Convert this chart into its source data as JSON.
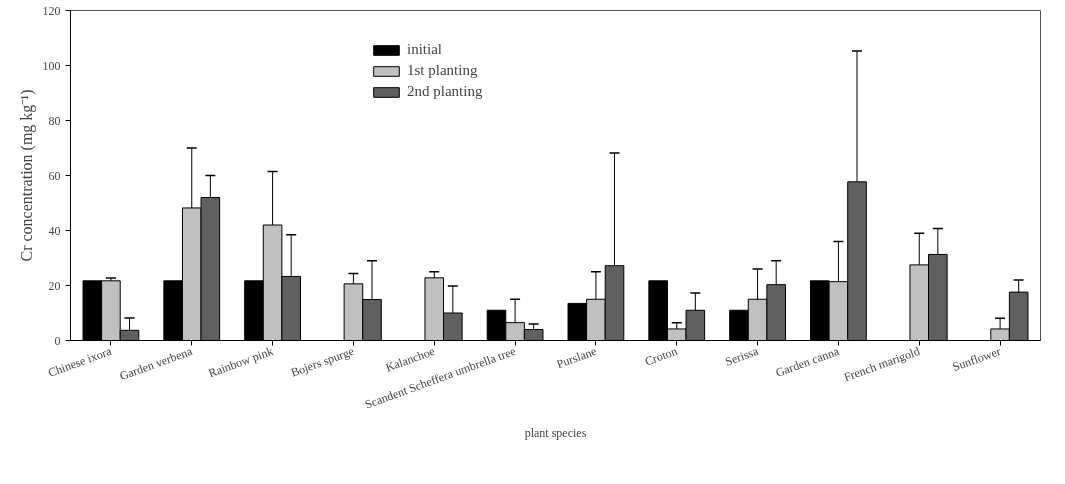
{
  "chart_data": {
    "type": "bar",
    "xlabel": "plant species",
    "ylabel": "Cr concentration (mg kg⁻¹)",
    "categories": [
      "Chinese ixora",
      "Garden verbena",
      "Rainbow pink",
      "Bojers spurge",
      "Kalanchoe",
      "Scandent Scheffera umbrella tree",
      "Purslane",
      "Croton",
      "Serissa",
      "Garden canna",
      "French marigold",
      "Sunflower"
    ],
    "series": [
      {
        "name": "initial",
        "color": "#000000",
        "values": [
          21.7,
          21.7,
          21.7,
          null,
          null,
          11,
          13.5,
          21.7,
          11,
          21.7,
          null,
          null
        ]
      },
      {
        "name": "1st planting",
        "color": "#c0c0c0",
        "values": [
          21.7,
          48.2,
          42,
          20.6,
          22.8,
          6.5,
          15,
          4.2,
          15,
          21.4,
          27.5,
          4.2
        ],
        "errors": [
          [
            21.7,
            22.7
          ],
          [
            48.2,
            70
          ],
          [
            42,
            61.5
          ],
          [
            20.6,
            24.4
          ],
          [
            22.8,
            25
          ],
          [
            6.5,
            15
          ],
          [
            15,
            25
          ],
          [
            4.2,
            6.5
          ],
          [
            15,
            26
          ],
          [
            21.4,
            36
          ],
          [
            27.5,
            39
          ],
          [
            4.2,
            8.1
          ]
        ]
      },
      {
        "name": "2nd planting",
        "color": "#606060",
        "values": [
          3.7,
          52,
          23.3,
          14.9,
          10,
          4,
          27.2,
          11,
          20.3,
          57.7,
          31.3,
          17.6
        ],
        "errors": [
          [
            3.7,
            8.2
          ],
          [
            52,
            60
          ],
          [
            23.3,
            38.5
          ],
          [
            14.9,
            29
          ],
          [
            10,
            19.8
          ],
          [
            4,
            6
          ],
          [
            27.2,
            68.2
          ],
          [
            11,
            17.3
          ],
          [
            20.3,
            29
          ],
          [
            57.7,
            105.3
          ],
          [
            31.3,
            40.7
          ],
          [
            17.6,
            22
          ]
        ]
      }
    ],
    "ylim": [
      0,
      120
    ],
    "yticks": [
      0,
      20,
      40,
      60,
      80,
      100,
      120
    ],
    "legend": "top",
    "grid": false
  }
}
